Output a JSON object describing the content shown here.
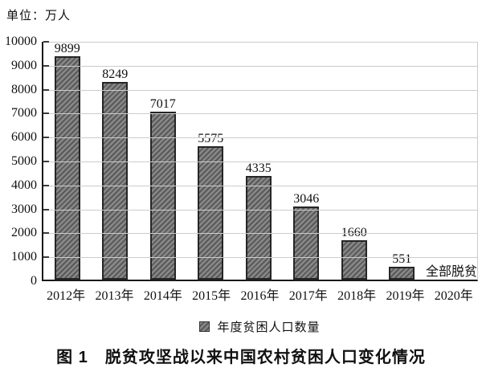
{
  "figure": {
    "unit_label": "单位：万人",
    "caption": "图 1　脱贫攻坚战以来中国农村贫困人口变化情况"
  },
  "legend": {
    "label": "年度贫困人口数量"
  },
  "chart_data": {
    "type": "bar",
    "title": "图 1　脱贫攻坚战以来中国农村贫困人口变化情况",
    "unit_label": "单位：万人",
    "xlabel": "",
    "ylabel": "万人",
    "categories": [
      "2012年",
      "2013年",
      "2014年",
      "2015年",
      "2016年",
      "2017年",
      "2018年",
      "2019年",
      "2020年"
    ],
    "values": [
      9899,
      8249,
      7017,
      5575,
      4335,
      3046,
      1660,
      551,
      null
    ],
    "bar_labels": [
      "9899",
      "8249",
      "7017",
      "5575",
      "4335",
      "3046",
      "1660",
      "551",
      ""
    ],
    "annotations": [
      {
        "category": "2020年",
        "text": "全部脱贫"
      }
    ],
    "legend_entries": [
      "年度贫困人口数量"
    ],
    "legend_position": "bottom",
    "ylim": [
      0,
      10000
    ],
    "y_ticks": [
      0,
      1000,
      2000,
      3000,
      4000,
      5000,
      6000,
      7000,
      8000,
      9000,
      10000
    ],
    "grid": true,
    "colors": {
      "bar_fill": "#888888",
      "bar_hatch": "#595959",
      "bar_border": "#262626",
      "gridline": "#cccccc",
      "axis": "#1a1a1a",
      "text": "#111111"
    }
  }
}
